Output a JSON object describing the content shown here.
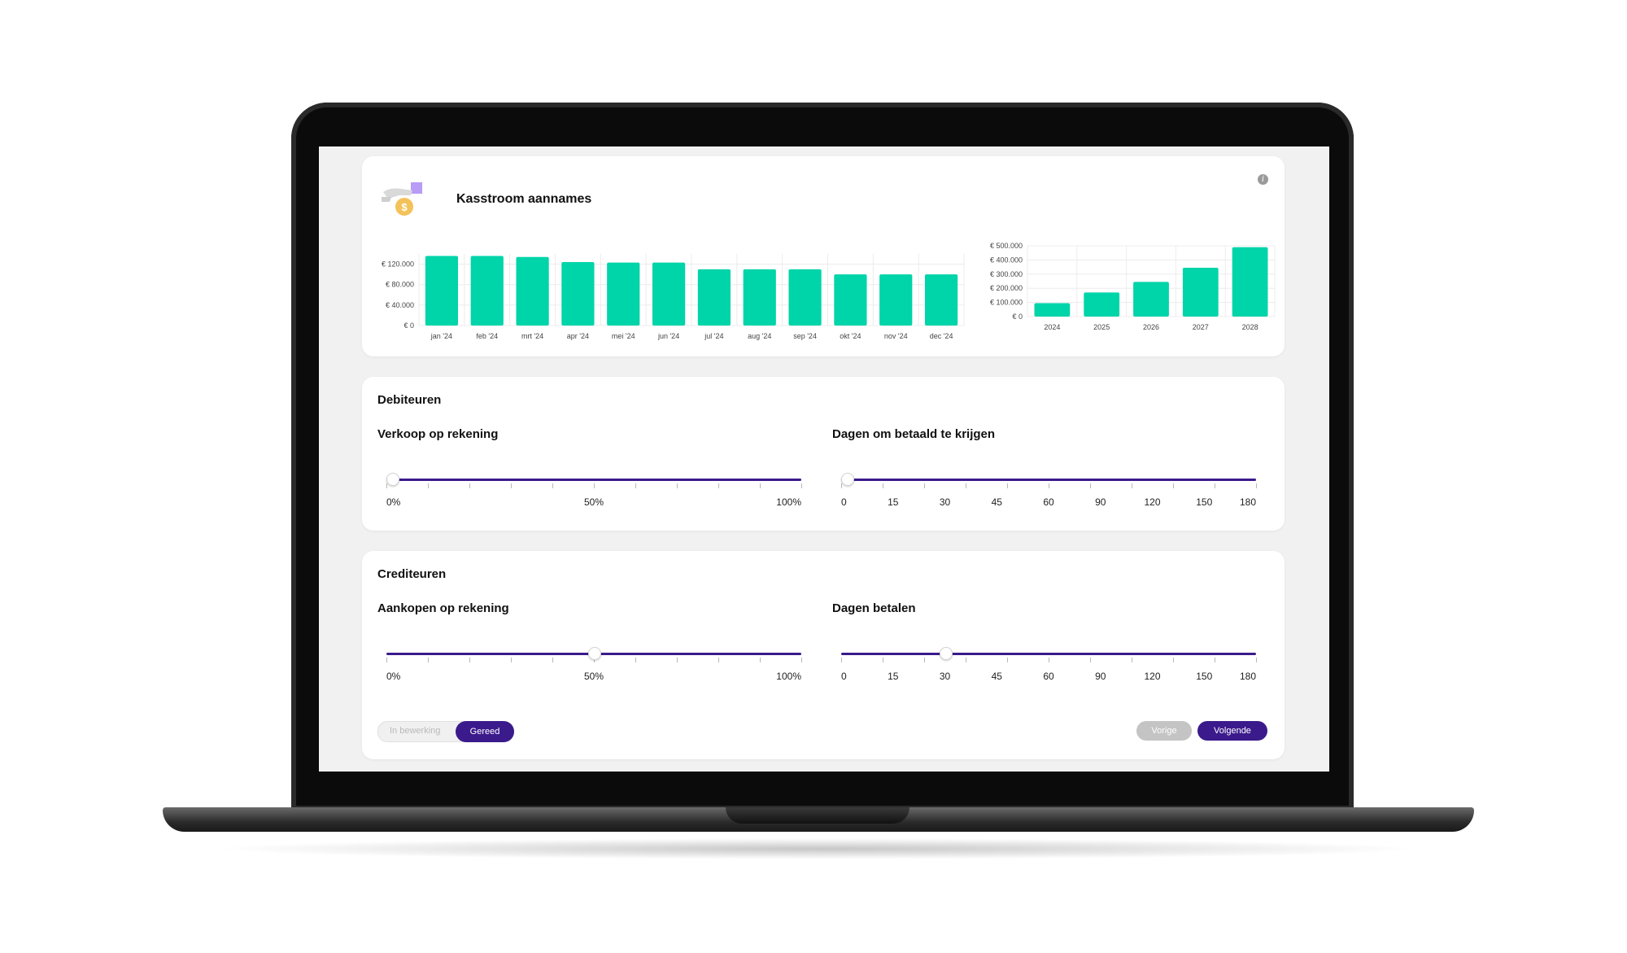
{
  "cashflow": {
    "title": "Kasstroom aannames",
    "info_icon": "info-icon",
    "illustration_icon": "hand-coin-icon"
  },
  "colors": {
    "bar": "#00d4a9",
    "accent": "#3b1a8c",
    "grid": "#ececec"
  },
  "chart_data": [
    {
      "type": "bar",
      "categories": [
        "jan '24",
        "feb '24",
        "mrt '24",
        "apr '24",
        "mei '24",
        "jun '24",
        "jul '24",
        "aug '24",
        "sep '24",
        "okt '24",
        "nov '24",
        "dec '24"
      ],
      "values": [
        136000,
        136000,
        134000,
        124000,
        123000,
        123000,
        110000,
        110000,
        110000,
        100000,
        100000,
        100000
      ],
      "yticks": [
        "€ 0",
        "€ 40.000",
        "€ 80.000",
        "€ 120.000"
      ],
      "ytick_values": [
        0,
        40000,
        80000,
        120000
      ],
      "ylim": [
        0,
        140000
      ],
      "grid": true
    },
    {
      "type": "bar",
      "categories": [
        "2024",
        "2025",
        "2026",
        "2027",
        "2028"
      ],
      "values": [
        95000,
        170000,
        245000,
        345000,
        490000
      ],
      "yticks": [
        "€ 0",
        "€ 100.000",
        "€ 200.000",
        "€ 300.000",
        "€ 400.000",
        "€ 500.000"
      ],
      "ytick_values": [
        0,
        100000,
        200000,
        300000,
        400000,
        500000
      ],
      "ylim": [
        0,
        500000
      ],
      "grid": true
    }
  ],
  "debiteuren": {
    "title": "Debiteuren",
    "left": {
      "label": "Verkoop op rekening",
      "scale_labels": [
        "0%",
        "50%",
        "100%"
      ],
      "value_percent": 0
    },
    "right": {
      "label": "Dagen om betaald te krijgen",
      "scale_labels": [
        "0",
        "15",
        "30",
        "45",
        "60",
        "90",
        "120",
        "150",
        "180"
      ],
      "value": "0"
    }
  },
  "crediteuren": {
    "title": "Crediteuren",
    "left": {
      "label": "Aankopen op rekening",
      "scale_labels": [
        "0%",
        "50%",
        "100%"
      ],
      "value_percent": 50
    },
    "right": {
      "label": "Dagen betalen",
      "scale_labels": [
        "0",
        "15",
        "30",
        "45",
        "60",
        "90",
        "120",
        "150",
        "180"
      ],
      "value": "30"
    }
  },
  "footer": {
    "status_in_progress": "In bewerking",
    "status_done": "Gereed",
    "prev": "Vorige",
    "next": "Volgende"
  }
}
